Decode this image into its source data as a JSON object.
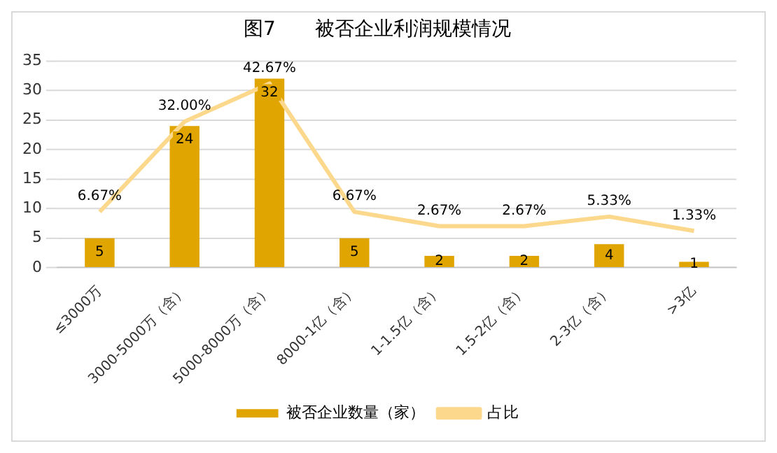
{
  "chart_data": {
    "type": "bar",
    "title": "图7　　被否企业利润规模情况",
    "categories": [
      "≤3000万",
      "3000-5000万（含）",
      "5000-8000万（含）",
      "8000-1亿（含）",
      "1-1.5亿（含）",
      "1.5-2亿（含）",
      "2-3亿（含）",
      ">3亿"
    ],
    "series": [
      {
        "name": "被否企业数量（家）",
        "color": "#e0a500",
        "values": [
          5,
          24,
          32,
          5,
          2,
          2,
          4,
          1
        ]
      },
      {
        "name": "占比",
        "type": "line",
        "axis": "y2",
        "color": "#fcd88c",
        "values": [
          6.67,
          32.0,
          42.67,
          6.67,
          2.67,
          2.67,
          5.33,
          1.33
        ],
        "value_labels": [
          "6.67%",
          "32.00%",
          "42.67%",
          "6.67%",
          "2.67%",
          "2.67%",
          "5.33%",
          "1.33%"
        ]
      }
    ],
    "ylim": [
      0,
      35
    ],
    "yticks": [
      0,
      5,
      10,
      15,
      20,
      25,
      30,
      35
    ],
    "y2lim": [
      -9,
      49
    ],
    "grid": "y",
    "legend": "bottom",
    "marker": "none",
    "data_labels": true
  }
}
